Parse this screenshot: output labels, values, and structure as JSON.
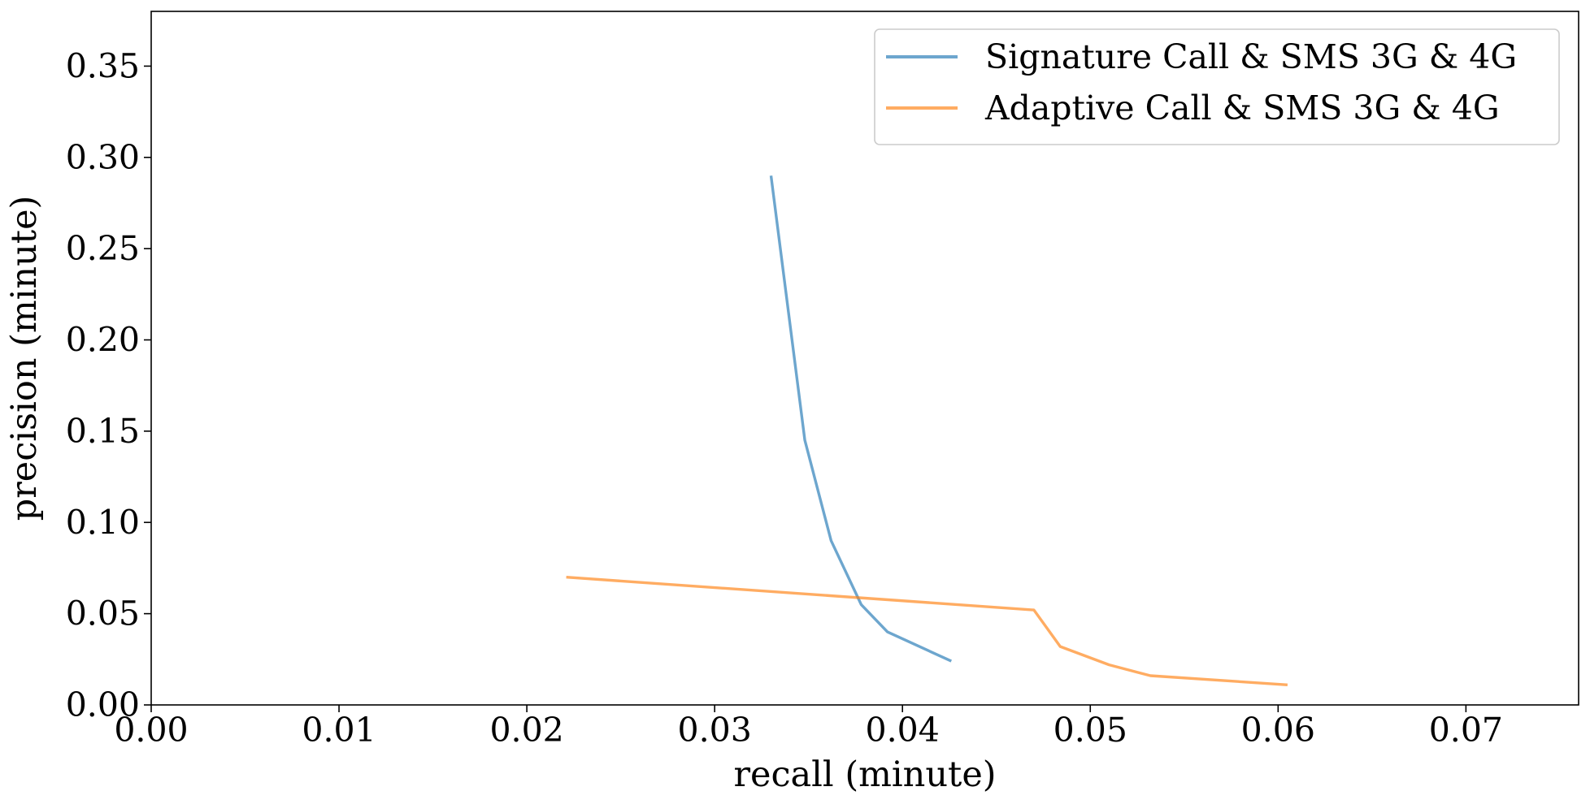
{
  "chart_data": {
    "type": "line",
    "title": "",
    "xlabel": "recall (minute)",
    "ylabel": "precision (minute)",
    "xlim": [
      0.0,
      0.076
    ],
    "ylim": [
      0.0,
      0.38
    ],
    "xticks": [
      0.0,
      0.01,
      0.02,
      0.03,
      0.04,
      0.05,
      0.06,
      0.07
    ],
    "yticks": [
      0.0,
      0.05,
      0.1,
      0.15,
      0.2,
      0.25,
      0.3,
      0.35
    ],
    "grid": false,
    "legend_position": "top-right",
    "series": [
      {
        "name": "Signature Call & SMS 3G & 4G",
        "color": "#1f77b4",
        "x": [
          0.033,
          0.0348,
          0.0362,
          0.0378,
          0.0392,
          0.0426
        ],
        "y": [
          0.29,
          0.145,
          0.09,
          0.055,
          0.04,
          0.024
        ]
      },
      {
        "name": "Adaptive Call & SMS 3G & 4G",
        "color": "#ff7f0e",
        "x": [
          0.0221,
          0.047,
          0.0484,
          0.051,
          0.0532,
          0.0605
        ],
        "y": [
          0.07,
          0.052,
          0.032,
          0.022,
          0.016,
          0.011
        ]
      }
    ]
  }
}
